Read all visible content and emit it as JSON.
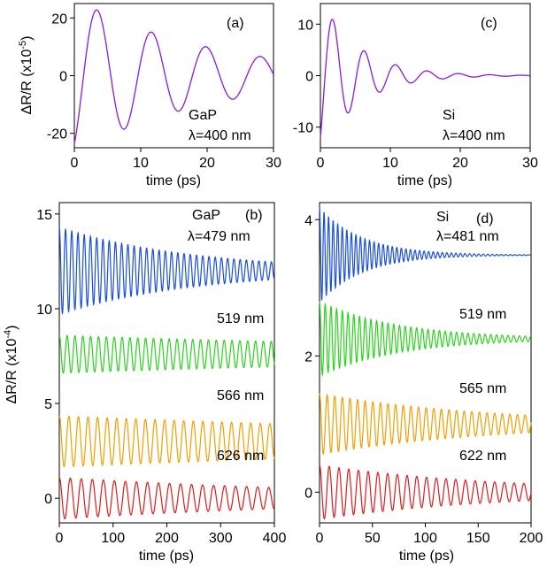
{
  "chart_data": [
    {
      "panel": "(a)",
      "type": "line",
      "xlabel": "time (ps)",
      "ylabel": "ΔR/R (x10",
      "ylabel_exp": "-5",
      "ylabel_close": ")",
      "xlim": [
        0,
        30
      ],
      "ylim": [
        -25,
        25
      ],
      "xticks": [
        "0",
        "10",
        "20",
        "30"
      ],
      "xtick_values": [
        0,
        10,
        20,
        30
      ],
      "yticks": [
        "-20",
        "0",
        "20"
      ],
      "ytick_values": [
        -20,
        0,
        20
      ],
      "annotations": [
        "GaP",
        "λ=400 nm"
      ],
      "series": [
        {
          "color": "#8a1bd6",
          "amplitude": 27,
          "period": 8.2,
          "decay_ps": 20,
          "phase_shift": 3.44,
          "t_end": 30
        }
      ]
    },
    {
      "panel": "(c)",
      "type": "line",
      "xlabel": "time (ps)",
      "ylabel": "",
      "xlim": [
        0,
        30
      ],
      "ylim": [
        -14,
        14
      ],
      "xticks": [
        "0",
        "10",
        "20",
        "30"
      ],
      "xtick_values": [
        0,
        10,
        20,
        30
      ],
      "yticks": [
        "-10",
        "0",
        "10"
      ],
      "ytick_values": [
        -10,
        0,
        10
      ],
      "annotations": [
        "Si",
        "λ=400 nm"
      ],
      "series": [
        {
          "color": "#8a1bd6",
          "amplitude": 15,
          "period": 4.5,
          "decay_ps": 5.5,
          "phase_shift": 1.79,
          "t_end": 30
        }
      ]
    },
    {
      "panel": "(b)",
      "type": "line",
      "xlabel": "time (ps)",
      "ylabel": "ΔR/R (x10",
      "ylabel_exp": "-4",
      "ylabel_close": ")",
      "xlim": [
        0,
        400
      ],
      "ylim": [
        -1.3,
        15.6
      ],
      "xticks": [
        "0",
        "100",
        "200",
        "300",
        "400"
      ],
      "xtick_values": [
        0,
        100,
        200,
        300,
        400
      ],
      "yticks": [
        "0",
        "5",
        "10",
        "15"
      ],
      "ytick_values": [
        0,
        5,
        10,
        15
      ],
      "annotations": [
        "GaP",
        "λ=479 nm",
        "519 nm",
        "566 nm",
        "626 nm"
      ],
      "series": [
        {
          "label": "λ=479 nm",
          "color": "#1a4fd8",
          "offset": 12,
          "amplitude": 2.3,
          "period": 11.6,
          "decay_ps": 250,
          "t_end": 400
        },
        {
          "label": "519 nm",
          "color": "#2ad31e",
          "offset": 7.6,
          "amplitude": 1.0,
          "period": 14.6,
          "decay_ps": 1000,
          "t_end": 400
        },
        {
          "label": "566 nm",
          "color": "#f0a000",
          "offset": 3.0,
          "amplitude": 1.35,
          "period": 17.8,
          "decay_ps": 1100,
          "t_end": 400
        },
        {
          "label": "626 nm",
          "color": "#e01b1b",
          "offset": 0,
          "amplitude": 1.1,
          "period": 20.5,
          "decay_ps": 600,
          "t_end": 400
        }
      ]
    },
    {
      "panel": "(d)",
      "type": "line",
      "xlabel": "time (ps)",
      "ylabel": "",
      "xlim": [
        0,
        200
      ],
      "ylim": [
        -0.45,
        4.25
      ],
      "xticks": [
        "0",
        "50",
        "100",
        "150",
        "200"
      ],
      "xtick_values": [
        0,
        50,
        100,
        150,
        200
      ],
      "yticks": [
        "0",
        "2",
        "4"
      ],
      "ytick_values": [
        0,
        2,
        4
      ],
      "annotations": [
        "Si",
        "λ=481 nm",
        "519 nm",
        "565 nm",
        "622 nm"
      ],
      "series": [
        {
          "label": "λ=481 nm",
          "color": "#1a4fd8",
          "offset": 3.48,
          "amplitude": 0.7,
          "period": 4.3,
          "decay_ps": 40,
          "t_end": 200
        },
        {
          "label": "519 nm",
          "color": "#2ad31e",
          "offset": 2.25,
          "amplitude": 0.55,
          "period": 5.4,
          "decay_ps": 75,
          "t_end": 200
        },
        {
          "label": "565 nm",
          "color": "#f0a000",
          "offset": 1.0,
          "amplitude": 0.45,
          "period": 7.2,
          "decay_ps": 160,
          "t_end": 200
        },
        {
          "label": "622 nm",
          "color": "#e01b1b",
          "offset": 0,
          "amplitude": 0.4,
          "period": 9.2,
          "decay_ps": 170,
          "t_end": 200
        }
      ]
    }
  ]
}
